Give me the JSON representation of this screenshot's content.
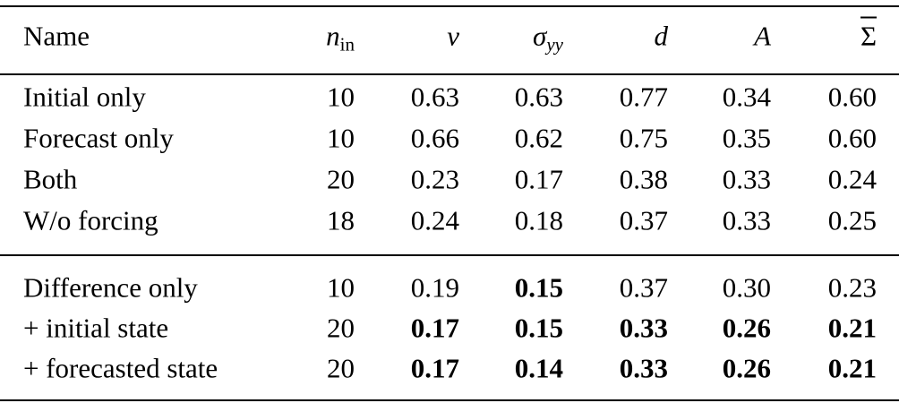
{
  "table": {
    "header": [
      {
        "main": "Name"
      },
      {
        "main": "n",
        "sub": "in",
        "italic": true
      },
      {
        "main": "v",
        "italic": true
      },
      {
        "main": "σ",
        "sub": "yy",
        "italic": true,
        "sub_italic": true
      },
      {
        "main": "d",
        "italic": true
      },
      {
        "main": "A",
        "italic": true
      },
      {
        "main": "Σ",
        "overline": true
      }
    ],
    "groups": [
      {
        "rows": [
          {
            "cells": [
              "Initial only",
              "10",
              "0.63",
              "0.63",
              "0.77",
              "0.34",
              "0.60"
            ],
            "bold": []
          },
          {
            "cells": [
              "Forecast only",
              "10",
              "0.66",
              "0.62",
              "0.75",
              "0.35",
              "0.60"
            ],
            "bold": []
          },
          {
            "cells": [
              "Both",
              "20",
              "0.23",
              "0.17",
              "0.38",
              "0.33",
              "0.24"
            ],
            "bold": []
          },
          {
            "cells": [
              "W/o forcing",
              "18",
              "0.24",
              "0.18",
              "0.37",
              "0.33",
              "0.25"
            ],
            "bold": []
          }
        ]
      },
      {
        "rows": [
          {
            "cells": [
              "Difference only",
              "10",
              "0.19",
              "0.15",
              "0.37",
              "0.30",
              "0.23"
            ],
            "bold": [
              3
            ]
          },
          {
            "cells": [
              "+ initial state",
              "20",
              "0.17",
              "0.15",
              "0.33",
              "0.26",
              "0.21"
            ],
            "bold": [
              2,
              3,
              4,
              5,
              6
            ]
          },
          {
            "cells": [
              "+ forecasted state",
              "20",
              "0.17",
              "0.14",
              "0.33",
              "0.26",
              "0.21"
            ],
            "bold": [
              2,
              3,
              4,
              5,
              6
            ]
          }
        ]
      }
    ]
  }
}
